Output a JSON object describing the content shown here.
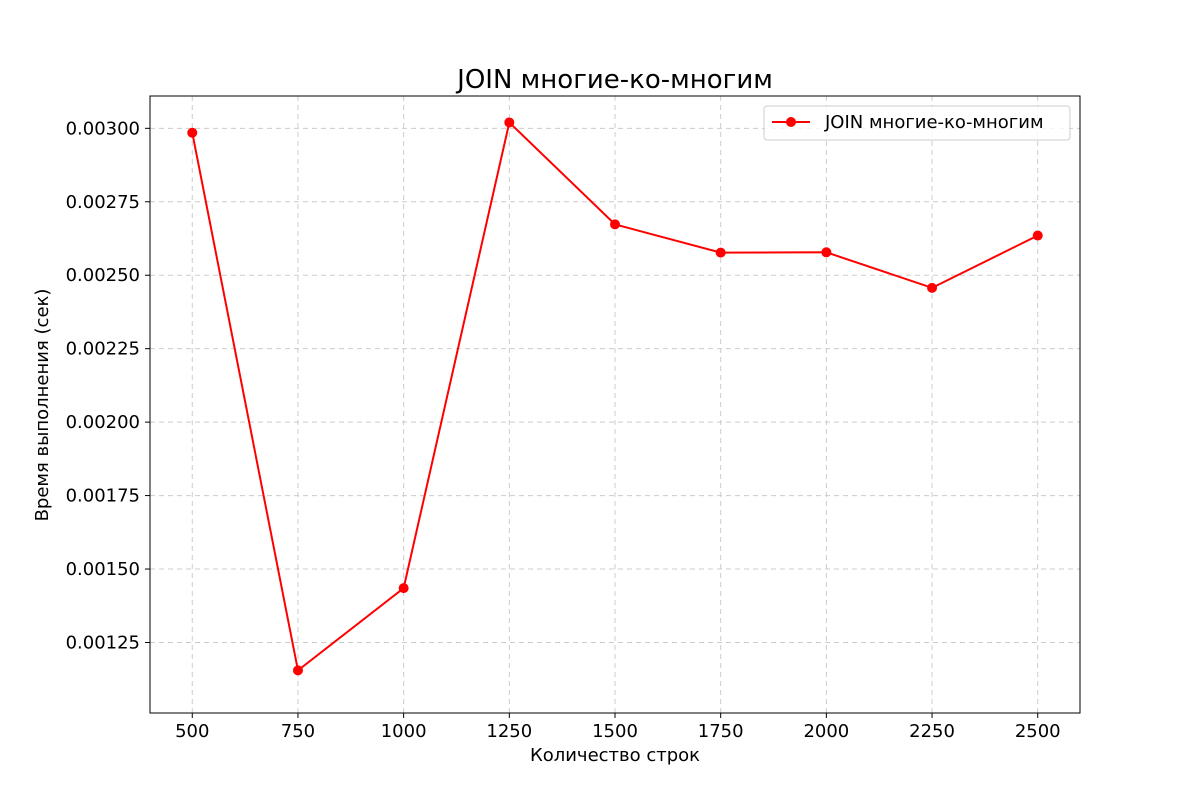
{
  "chart_data": {
    "type": "line",
    "title": "JOIN многие-ко-многим",
    "xlabel": "Количество строк",
    "ylabel": "Время выполнения (сек)",
    "x": [
      500,
      750,
      1000,
      1250,
      1500,
      1750,
      2000,
      2250,
      2500
    ],
    "series": [
      {
        "name": "JOIN многие-ко-многим",
        "color": "#ff0000",
        "marker": "circle",
        "values": [
          0.002985,
          0.001155,
          0.001435,
          0.00302,
          0.002673,
          0.002577,
          0.002578,
          0.002457,
          0.002635
        ]
      }
    ],
    "xlim": [
      400,
      2600
    ],
    "ylim": [
      0.00101,
      0.00311
    ],
    "xticks": [
      500,
      750,
      1000,
      1250,
      1500,
      1750,
      2000,
      2250,
      2500
    ],
    "yticks": [
      0.00125,
      0.0015,
      0.00175,
      0.002,
      0.00225,
      0.0025,
      0.00275,
      0.003
    ],
    "ytick_labels": [
      "0.00125",
      "0.00150",
      "0.00175",
      "0.00200",
      "0.00225",
      "0.00250",
      "0.00275",
      "0.00300"
    ],
    "grid": true,
    "legend_position": "top-right"
  }
}
